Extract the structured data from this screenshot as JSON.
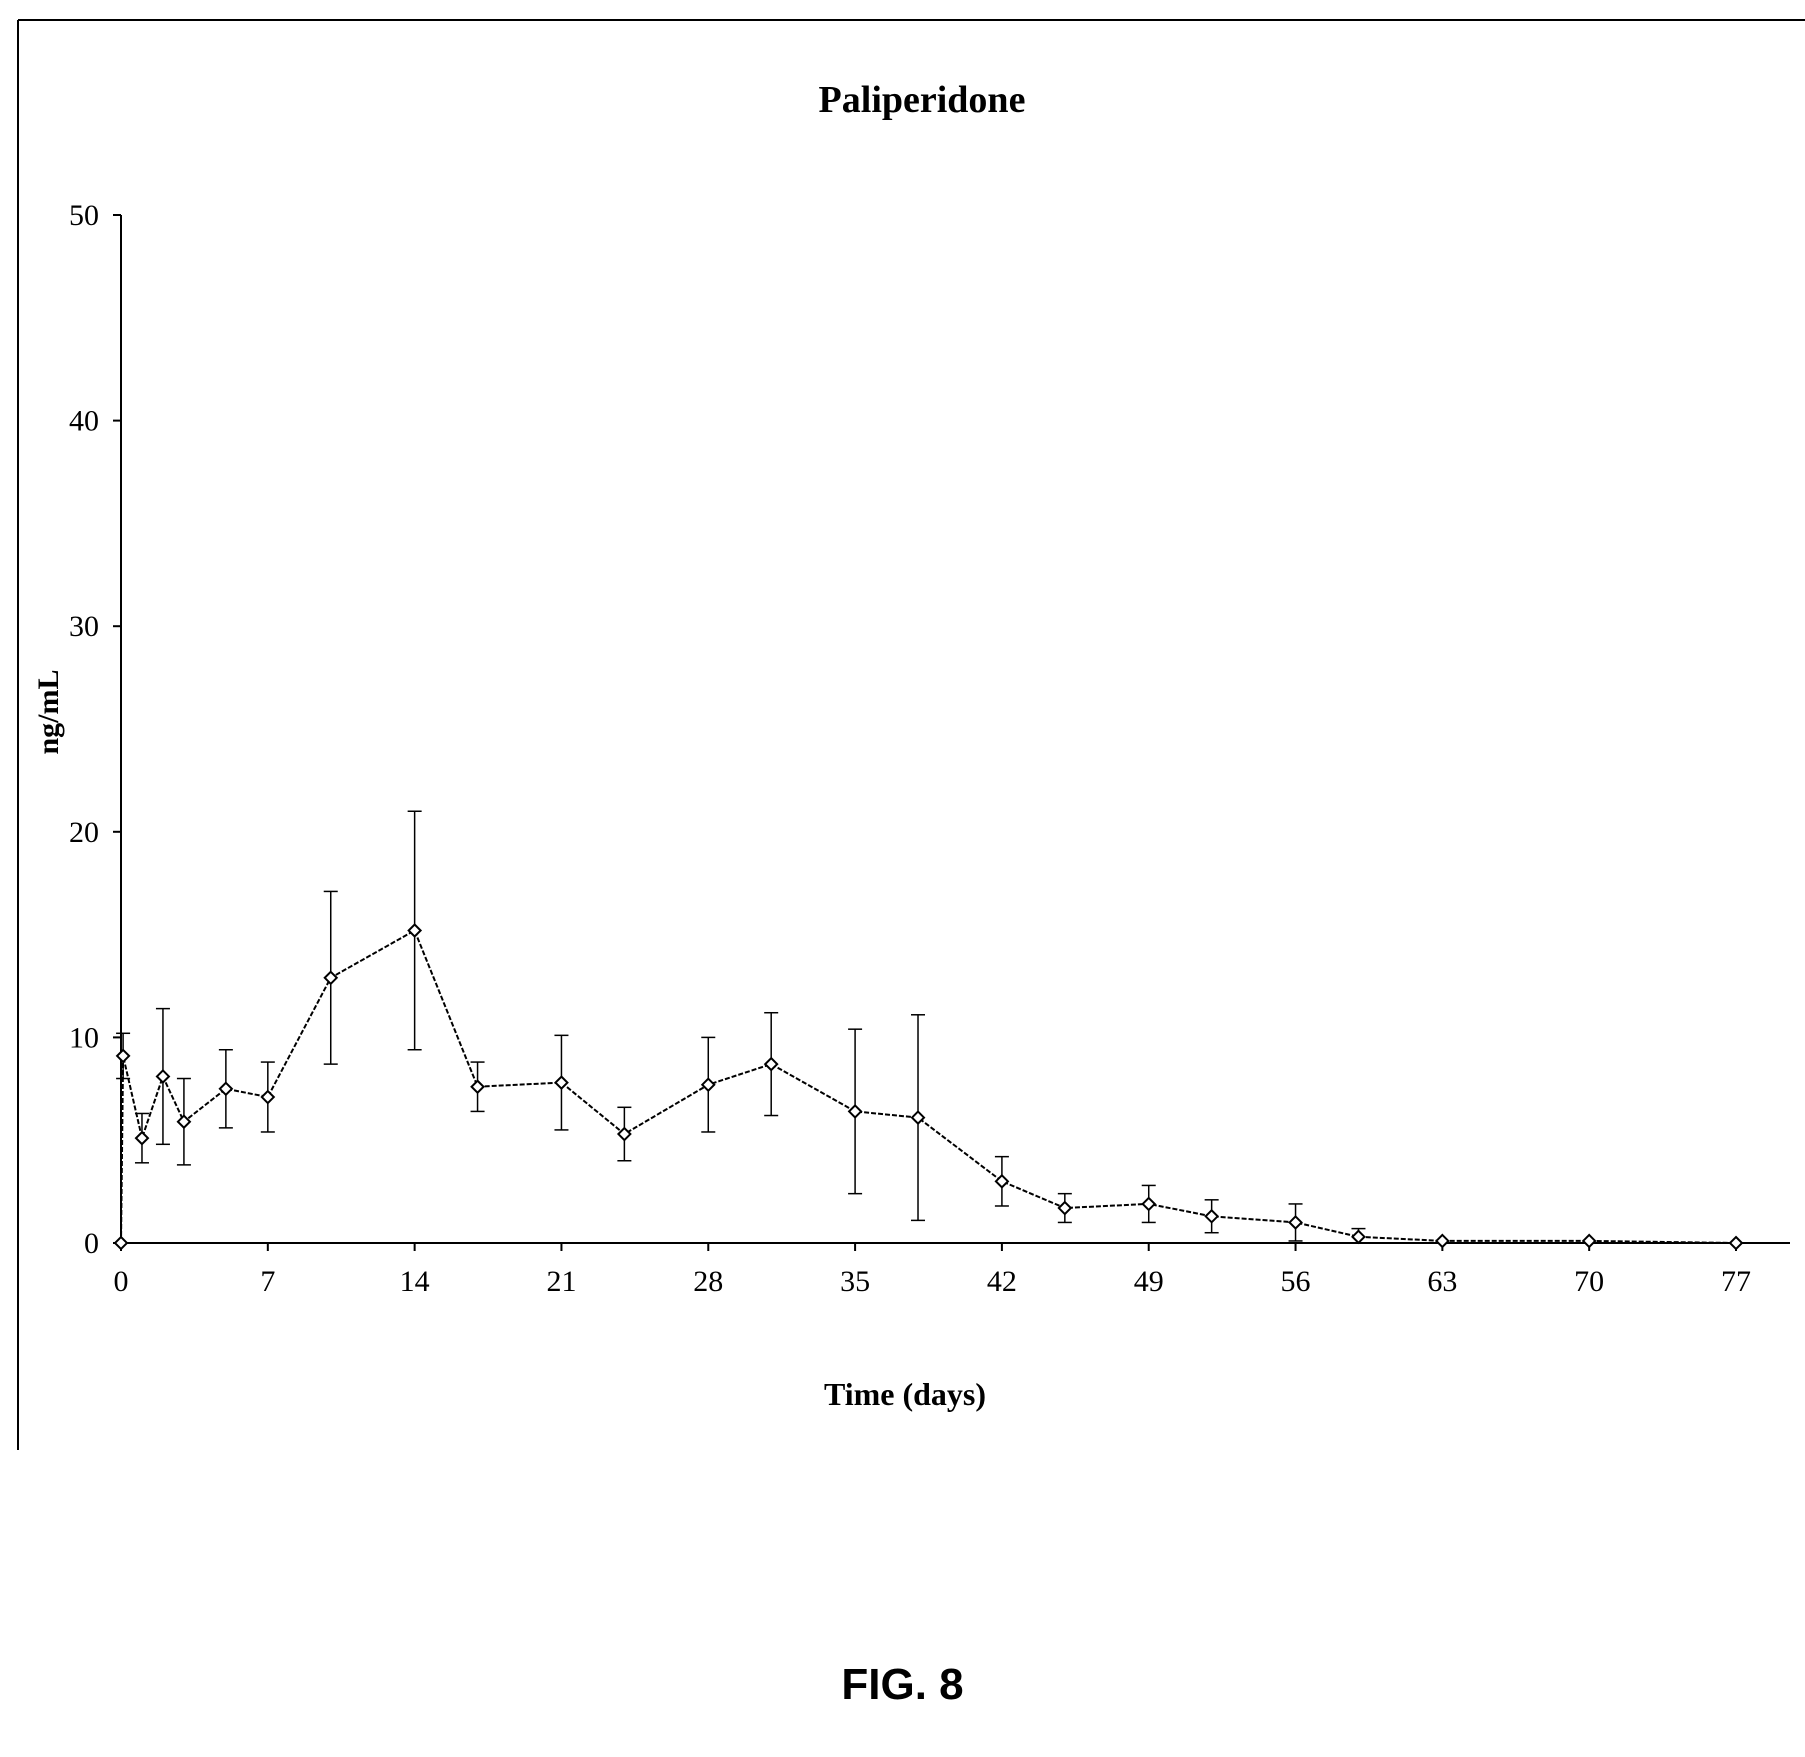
{
  "figure_caption": "FIG. 8",
  "chart_data": {
    "type": "line",
    "title": "Paliperidone",
    "xlabel": "Time (days)",
    "ylabel": "ng/mL",
    "xlim": [
      0,
      79
    ],
    "ylim": [
      0,
      50
    ],
    "x_ticks": [
      0,
      7,
      14,
      21,
      28,
      35,
      42,
      49,
      56,
      63,
      70,
      77
    ],
    "y_ticks": [
      0,
      10,
      20,
      30,
      40,
      50
    ],
    "grid": false,
    "legend": "none",
    "series": [
      {
        "x": [
          0,
          0.1,
          1,
          2,
          3,
          5,
          7,
          10,
          14,
          17,
          21,
          24,
          28,
          31,
          35,
          38,
          42,
          45,
          49,
          52,
          56,
          59,
          63,
          70,
          77
        ],
        "y": [
          0,
          9.1,
          5.1,
          8.1,
          5.9,
          7.5,
          7.1,
          12.9,
          15.2,
          7.6,
          7.8,
          5.3,
          7.7,
          8.7,
          6.4,
          6.1,
          3.0,
          1.7,
          1.9,
          1.3,
          1.0,
          0.3,
          0.1,
          0.1,
          0
        ],
        "err": [
          0,
          1.1,
          1.2,
          3.3,
          2.1,
          1.9,
          1.7,
          4.2,
          5.8,
          1.2,
          2.3,
          1.3,
          2.3,
          2.5,
          4.0,
          5.0,
          1.2,
          0.7,
          0.9,
          0.8,
          0.9,
          0.4,
          0,
          0,
          0
        ]
      }
    ]
  }
}
